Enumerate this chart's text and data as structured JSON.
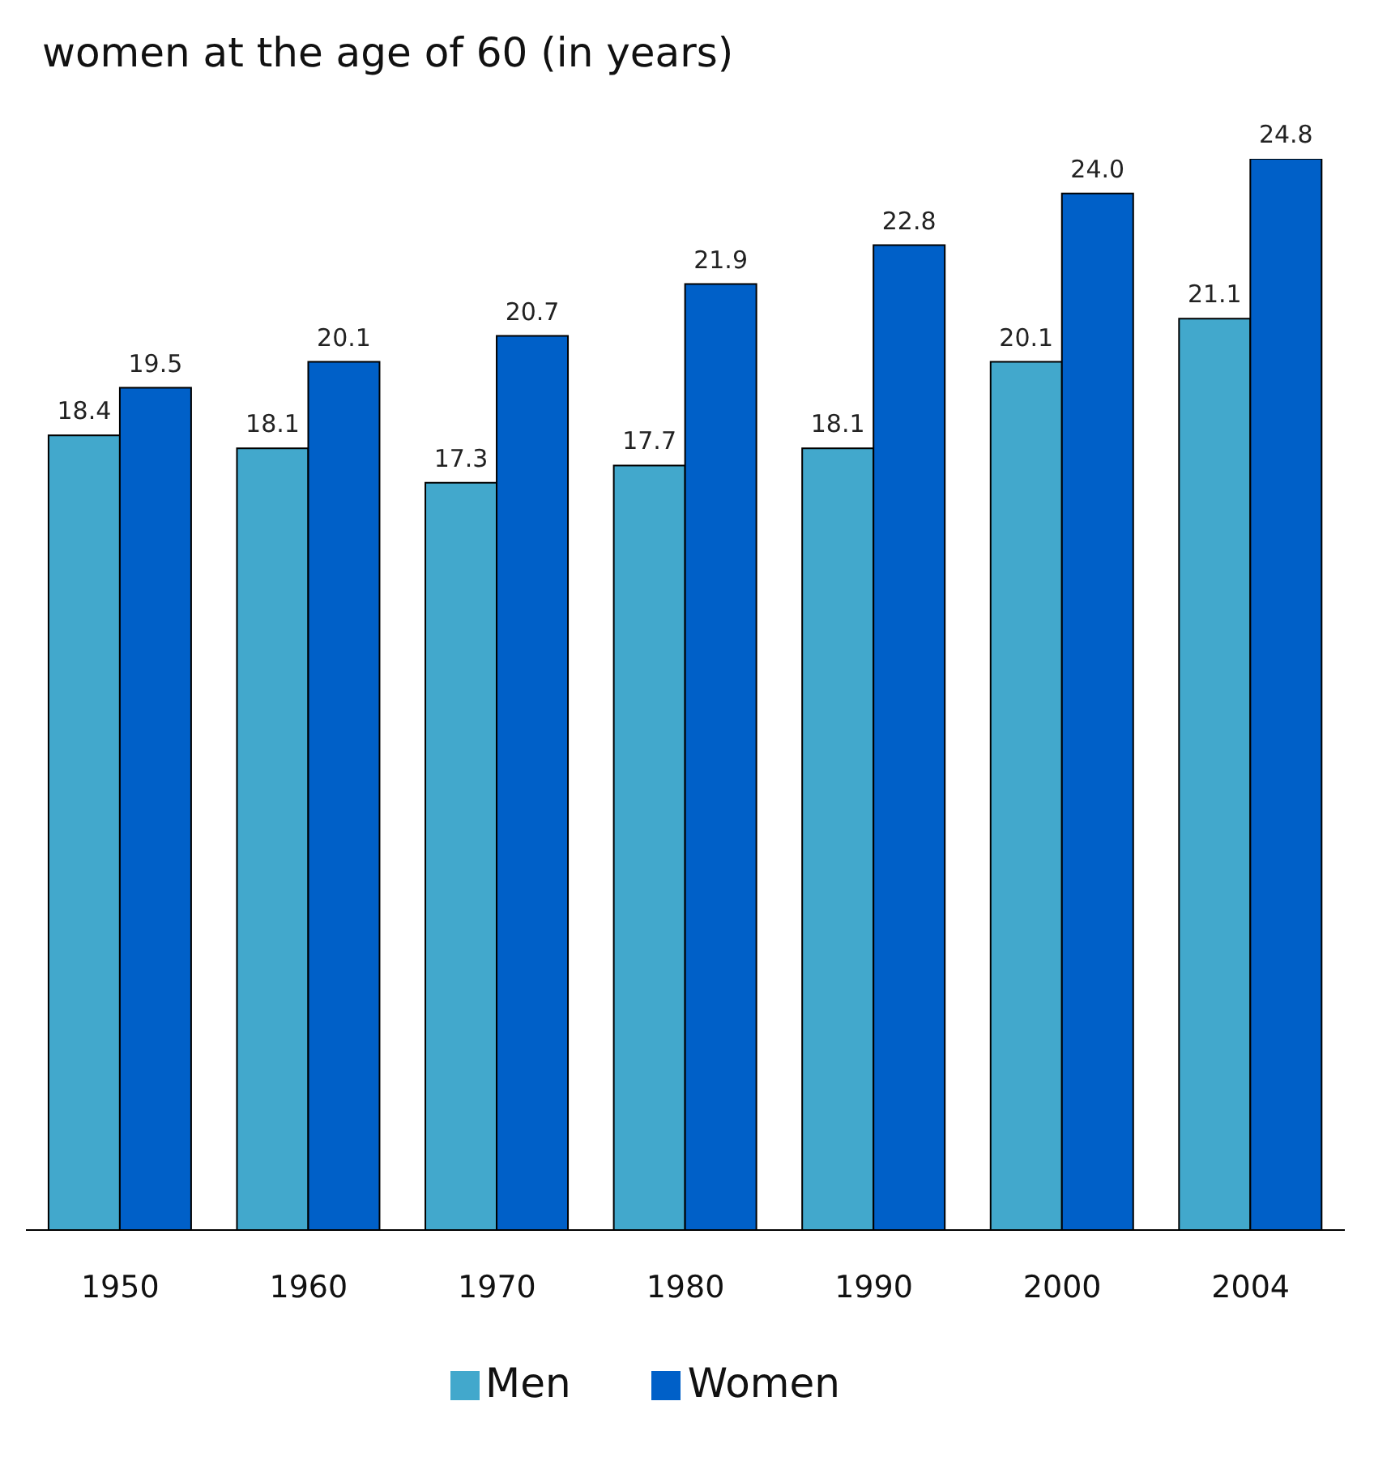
{
  "chart_data": {
    "type": "bar",
    "title": "women at the age of 60 (in years)",
    "categories": [
      "1950",
      "1960",
      "1970",
      "1980",
      "1990",
      "2000",
      "2004"
    ],
    "series": [
      {
        "name": "Men",
        "color": "#42a8cc",
        "values": [
          18.4,
          18.1,
          17.3,
          17.7,
          18.1,
          20.1,
          21.1
        ],
        "value_labels": [
          "18.4",
          "18.1",
          "17.3",
          "17.7",
          "18.1",
          "20.1",
          "21.1"
        ]
      },
      {
        "name": "Women",
        "color": "#0060c8",
        "values": [
          19.5,
          20.1,
          20.7,
          21.9,
          22.8,
          24.0,
          24.8
        ],
        "value_labels": [
          "19.5",
          "20.1",
          "20.7",
          "21.9",
          "22.8",
          "24.0",
          "24.8"
        ]
      }
    ],
    "legend": "bottom",
    "grid": false
  }
}
